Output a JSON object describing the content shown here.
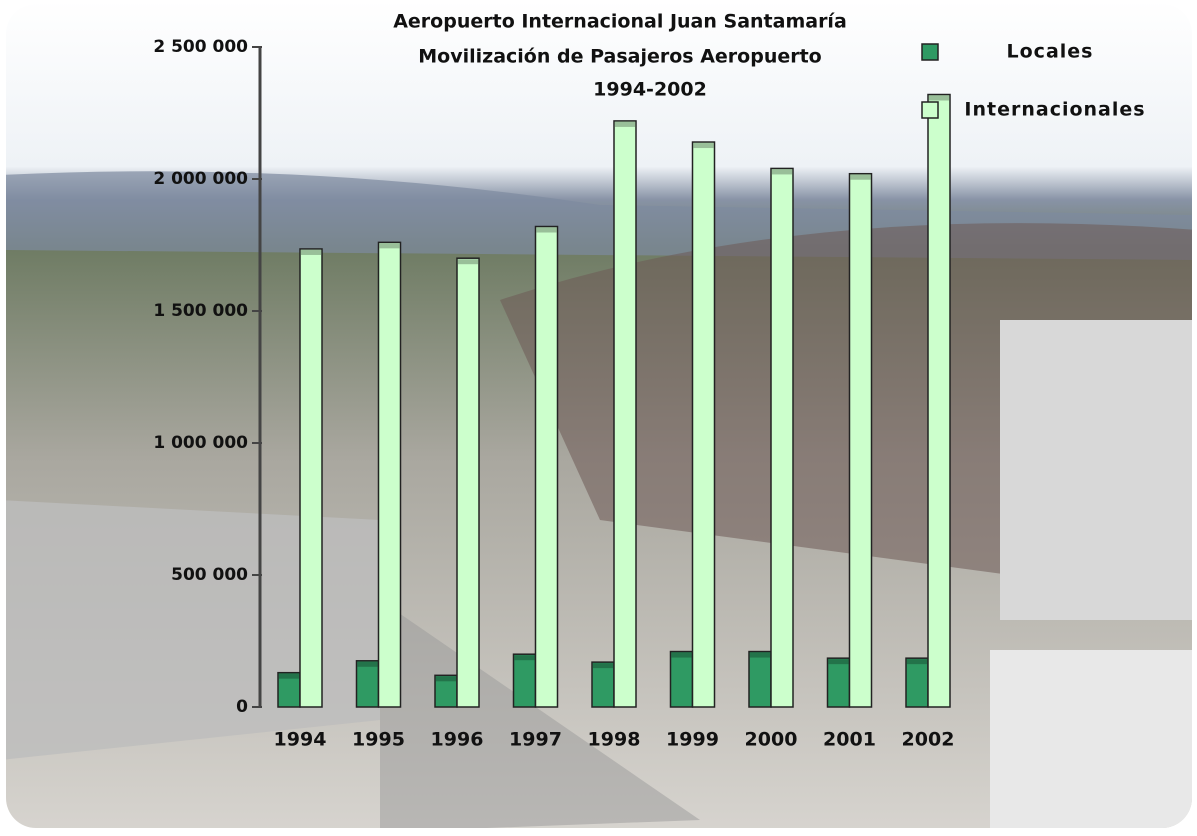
{
  "chart_data": {
    "type": "bar",
    "title": [
      "Aeropuerto Internacional Juan Santamaría",
      "Movilización de Pasajeros Aeropuerto",
      "1994-2002"
    ],
    "categories": [
      "1994",
      "1995",
      "1996",
      "1997",
      "1998",
      "1999",
      "2000",
      "2001",
      "2002"
    ],
    "series": [
      {
        "name": "Locales",
        "color": "#2f9a63",
        "values": [
          130000,
          175000,
          120000,
          200000,
          170000,
          210000,
          210000,
          185000,
          185000
        ]
      },
      {
        "name": "Internacionales",
        "color": "#ccffcc",
        "values": [
          1735000,
          1760000,
          1700000,
          1820000,
          2220000,
          2140000,
          2040000,
          2020000,
          2320000
        ]
      }
    ],
    "ylim": [
      0,
      2500000
    ],
    "yticks": [
      0,
      {
        "value": 500000,
        "label": "500 000"
      },
      {
        "value": 1000000,
        "label": "1 000 000"
      },
      {
        "value": 1500000,
        "label": "1 500 000"
      },
      {
        "value": 2000000,
        "label": "2 000 000"
      },
      {
        "value": 2500000,
        "label": "2 500 000"
      }
    ],
    "legend": "top-right"
  }
}
